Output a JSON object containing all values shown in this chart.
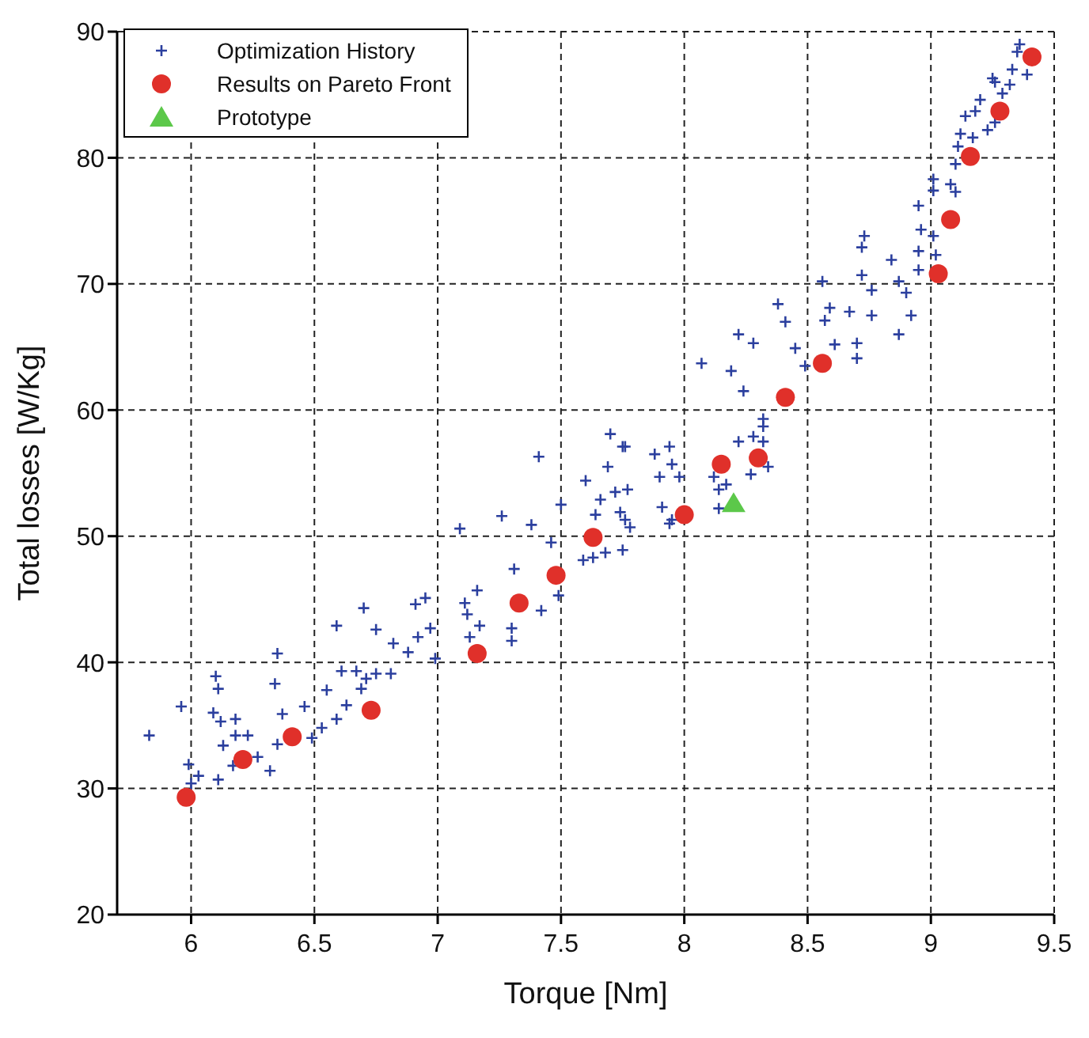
{
  "chart_data": {
    "type": "scatter",
    "xlabel": "Torque [Nm]",
    "ylabel": "Total losses [W/Kg]",
    "xlim": [
      5.7,
      9.5
    ],
    "xticks": [
      6,
      6.5,
      7,
      7.5,
      8,
      8.5,
      9,
      9.5
    ],
    "ylim": [
      20,
      90
    ],
    "yticks": [
      20,
      30,
      40,
      50,
      60,
      70,
      80,
      90
    ],
    "grid": true,
    "legend": "top left",
    "series": [
      {
        "name": "Optimization History",
        "color": "#2b3f9e",
        "marker": "cross",
        "x": [
          5.83,
          5.96,
          5.99,
          6.0,
          6.03,
          6.1,
          6.11,
          6.09,
          6.12,
          6.18,
          6.13,
          6.18,
          6.23,
          6.27,
          6.11,
          6.17,
          6.32,
          6.34,
          6.37,
          6.35,
          6.46,
          6.49,
          6.53,
          6.55,
          6.59,
          6.61,
          6.59,
          6.63,
          6.67,
          6.69,
          6.71,
          6.75,
          6.81,
          6.82,
          6.35,
          6.7,
          6.75,
          6.88,
          6.92,
          6.97,
          6.95,
          6.91,
          6.99,
          7.09,
          7.11,
          7.12,
          7.13,
          7.16,
          7.17,
          7.26,
          7.3,
          7.3,
          7.31,
          7.38,
          7.41,
          7.46,
          7.42,
          7.49,
          7.5,
          7.6,
          7.59,
          7.7,
          7.75,
          7.88,
          8.07,
          8.22,
          8.19,
          8.28,
          8.38,
          8.41,
          8.24,
          8.32,
          8.28,
          8.45,
          8.49,
          8.56,
          8.59,
          8.57,
          8.61,
          8.67,
          8.7,
          8.76,
          8.72,
          8.76,
          8.7,
          8.84,
          8.87,
          8.9,
          8.87,
          8.92,
          8.95,
          8.73,
          8.72,
          8.95,
          8.96,
          9.01,
          8.95,
          9.01,
          9.02,
          9.01,
          9.08,
          9.1,
          9.11,
          9.12,
          9.17,
          9.14,
          9.18,
          9.23,
          9.26,
          9.2,
          9.25,
          9.29,
          9.26,
          9.32,
          9.33,
          9.36,
          9.35,
          9.39,
          9.1,
          7.69,
          7.66,
          7.72,
          7.77,
          7.64,
          7.74,
          7.78,
          7.76,
          7.63,
          7.68,
          7.75,
          7.9,
          7.95,
          7.98,
          7.91,
          7.95,
          7.94,
          8.12,
          8.14,
          8.17,
          8.14,
          8.22,
          8.32,
          8.27,
          8.34,
          7.76,
          7.94,
          8.32
        ],
        "values": [
          34.2,
          36.5,
          31.9,
          30.4,
          31.0,
          38.9,
          37.9,
          36.0,
          35.3,
          35.5,
          33.4,
          34.2,
          34.2,
          32.5,
          30.7,
          31.8,
          31.4,
          38.3,
          35.9,
          33.5,
          36.5,
          34.0,
          34.8,
          37.8,
          42.9,
          39.3,
          35.5,
          36.6,
          39.3,
          37.9,
          38.7,
          39.1,
          39.1,
          41.5,
          40.7,
          44.3,
          42.6,
          40.8,
          42.0,
          42.7,
          45.1,
          44.6,
          40.3,
          50.6,
          44.7,
          43.8,
          42.0,
          45.7,
          42.9,
          51.6,
          42.7,
          41.7,
          47.4,
          50.9,
          56.3,
          49.5,
          44.1,
          45.3,
          52.5,
          54.4,
          48.1,
          58.1,
          57.1,
          56.5,
          63.7,
          66.0,
          63.1,
          65.3,
          68.4,
          67.0,
          61.5,
          59.3,
          57.9,
          64.9,
          63.5,
          70.2,
          68.1,
          67.1,
          65.2,
          67.8,
          65.3,
          69.5,
          70.7,
          67.5,
          64.1,
          71.9,
          70.2,
          69.3,
          66.0,
          67.5,
          71.1,
          73.8,
          72.9,
          72.6,
          74.3,
          73.8,
          76.2,
          77.4,
          72.3,
          78.3,
          77.9,
          79.5,
          80.9,
          81.9,
          81.6,
          83.3,
          83.7,
          82.2,
          82.8,
          84.6,
          86.3,
          85.1,
          86.0,
          85.8,
          87.0,
          89.0,
          88.4,
          86.6,
          77.3,
          55.5,
          52.9,
          53.5,
          53.7,
          51.7,
          51.9,
          50.7,
          51.3,
          48.3,
          48.7,
          48.9,
          54.7,
          55.7,
          54.7,
          52.3,
          51.3,
          51.0,
          54.7,
          53.7,
          54.1,
          52.2,
          57.5,
          57.5,
          54.9,
          55.5,
          57.1,
          57.1,
          58.7
        ]
      },
      {
        "name": "Results on Pareto Front",
        "color": "#e0302a",
        "marker": "circle",
        "x": [
          5.98,
          6.21,
          6.41,
          6.73,
          7.16,
          7.33,
          7.48,
          7.63,
          8.0,
          8.15,
          8.3,
          8.41,
          8.56,
          9.03,
          9.08,
          9.16,
          9.28,
          9.41
        ],
        "values": [
          29.3,
          32.3,
          34.1,
          36.2,
          40.7,
          44.7,
          46.9,
          49.9,
          51.7,
          55.7,
          56.2,
          61.0,
          63.7,
          70.8,
          75.1,
          80.1,
          83.7,
          88.0
        ]
      },
      {
        "name": "Prototype",
        "color": "#5cc84a",
        "marker": "triangle",
        "x": [
          8.2
        ],
        "values": [
          52.6
        ]
      }
    ]
  }
}
